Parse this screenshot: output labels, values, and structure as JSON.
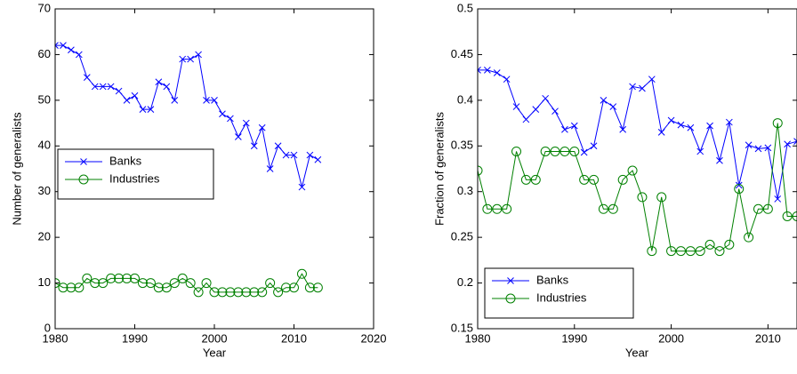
{
  "chart_data": [
    {
      "type": "line",
      "xlabel": "Year",
      "ylabel": "Number of generalists",
      "x": [
        1980,
        1981,
        1982,
        1983,
        1984,
        1985,
        1986,
        1987,
        1988,
        1989,
        1990,
        1991,
        1992,
        1993,
        1994,
        1995,
        1996,
        1997,
        1998,
        1999,
        2000,
        2001,
        2002,
        2003,
        2004,
        2005,
        2006,
        2007,
        2008,
        2009,
        2010,
        2011,
        2012,
        2013
      ],
      "series": [
        {
          "name": "Banks",
          "color": "#0000ff",
          "marker": "x",
          "values": [
            62,
            62,
            61,
            60,
            55,
            53,
            53,
            53,
            52,
            50,
            51,
            48,
            48,
            54,
            53,
            50,
            59,
            59,
            60,
            50,
            50,
            47,
            46,
            42,
            45,
            40,
            44,
            35,
            40,
            38,
            38,
            31,
            38,
            37
          ]
        },
        {
          "name": "Industries",
          "color": "#008000",
          "marker": "o",
          "values": [
            10,
            9,
            9,
            9,
            11,
            10,
            10,
            11,
            11,
            11,
            11,
            10,
            10,
            9,
            9,
            10,
            11,
            10,
            8,
            10,
            8,
            8,
            8,
            8,
            8,
            8,
            8,
            10,
            8,
            9,
            9,
            12,
            9,
            9
          ]
        }
      ],
      "xlim": [
        1980,
        2020
      ],
      "xticks": [
        1980,
        1990,
        2000,
        2010,
        2020
      ],
      "ylim": [
        0,
        70
      ],
      "yticks": [
        0,
        10,
        20,
        30,
        40,
        50,
        60,
        70
      ],
      "legend": "center-left"
    },
    {
      "type": "line",
      "xlabel": "Year",
      "ylabel": "Fraction of generalists",
      "x": [
        1980,
        1981,
        1982,
        1983,
        1984,
        1985,
        1986,
        1987,
        1988,
        1989,
        1990,
        1991,
        1992,
        1993,
        1994,
        1995,
        1996,
        1997,
        1998,
        1999,
        2000,
        2001,
        2002,
        2003,
        2004,
        2005,
        2006,
        2007,
        2008,
        2009,
        2010,
        2011,
        2012,
        2013
      ],
      "series": [
        {
          "name": "Banks",
          "color": "#0000ff",
          "marker": "x",
          "values": [
            0.433,
            0.433,
            0.43,
            0.423,
            0.393,
            0.379,
            0.39,
            0.402,
            0.388,
            0.368,
            0.372,
            0.343,
            0.35,
            0.4,
            0.393,
            0.368,
            0.415,
            0.413,
            0.423,
            0.365,
            0.378,
            0.373,
            0.37,
            0.344,
            0.372,
            0.334,
            0.376,
            0.307,
            0.351,
            0.347,
            0.348,
            0.292,
            0.352,
            0.355
          ]
        },
        {
          "name": "Industries",
          "color": "#008000",
          "marker": "o",
          "values": [
            0.323,
            0.281,
            0.281,
            0.281,
            0.344,
            0.313,
            0.313,
            0.344,
            0.344,
            0.344,
            0.344,
            0.313,
            0.313,
            0.281,
            0.281,
            0.313,
            0.323,
            0.294,
            0.235,
            0.294,
            0.235,
            0.235,
            0.235,
            0.235,
            0.242,
            0.235,
            0.242,
            0.303,
            0.25,
            0.281,
            0.281,
            0.375,
            0.273,
            0.273
          ]
        }
      ],
      "xlim": [
        1980,
        2013
      ],
      "xticks": [
        1980,
        1990,
        2000,
        2010
      ],
      "ylim": [
        0.15,
        0.5
      ],
      "yticks": [
        0.15,
        0.2,
        0.25,
        0.3,
        0.35,
        0.4,
        0.45,
        0.5
      ],
      "legend": "lower-left"
    }
  ]
}
